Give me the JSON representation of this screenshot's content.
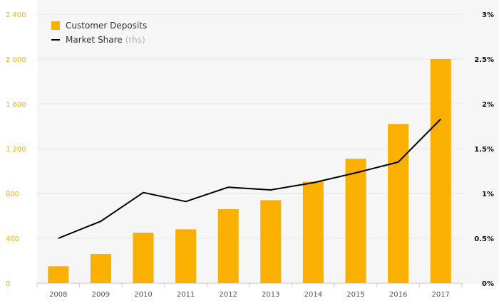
{
  "chart_data": {
    "type": "bar",
    "categories": [
      "2008",
      "2009",
      "2010",
      "2011",
      "2012",
      "2013",
      "2014",
      "2015",
      "2016",
      "2017"
    ],
    "series": [
      {
        "name": "Customer Deposits",
        "type": "bar",
        "axis": "left",
        "color": "#f9b000",
        "values": [
          150,
          260,
          450,
          480,
          660,
          740,
          905,
          1110,
          1420,
          2000
        ]
      },
      {
        "name": "Market Share",
        "axis_note": "(rhs)",
        "type": "line",
        "axis": "right",
        "color": "#000000",
        "values": [
          0.5,
          0.69,
          1.01,
          0.91,
          1.07,
          1.04,
          1.12,
          1.23,
          1.35,
          1.83
        ]
      }
    ],
    "y_left": {
      "ylim": [
        0,
        2400
      ],
      "ticks": [
        0,
        400,
        800,
        1200,
        1600,
        2000,
        2400
      ],
      "tick_labels": [
        "0",
        "400",
        "800",
        "1 200",
        "1 600",
        "2 000",
        "2 400"
      ],
      "tick_color": "#f9b000"
    },
    "y_right": {
      "ylim": [
        0,
        3
      ],
      "ticks": [
        0,
        0.5,
        1,
        1.5,
        2,
        2.5,
        3
      ],
      "tick_labels": [
        "0%",
        "0.5%",
        "1%",
        "1.5%",
        "2%",
        "2.5%",
        "3%"
      ]
    },
    "grid": true,
    "background": "#f6f6f6",
    "legend_placement": "top-left"
  }
}
